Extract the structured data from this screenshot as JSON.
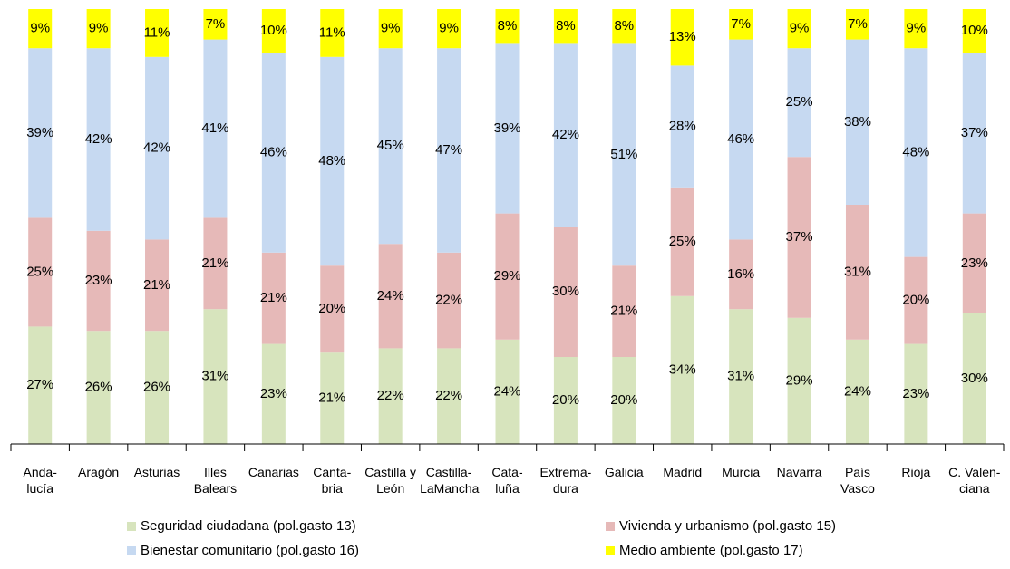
{
  "chart_data": {
    "type": "stacked_bar",
    "categories": [
      "Anda-\nlucía",
      "Aragón",
      "Asturias",
      "Illes\nBalears",
      "Canarias",
      "Canta-\nbria",
      "Castilla y\nLeón",
      "Castilla-\nLaMancha",
      "Cata-\nluña",
      "Extrema-\ndura",
      "Galicia",
      "Madrid",
      "Murcia",
      "Navarra",
      "País\nVasco",
      "Rioja",
      "C. Valen-\nciana"
    ],
    "series": [
      {
        "name": "Seguridad ciudadana (pol.gasto 13)",
        "color": "#d7e4bd",
        "values": [
          27,
          26,
          26,
          31,
          23,
          21,
          22,
          22,
          24,
          20,
          20,
          34,
          31,
          29,
          24,
          23,
          30
        ],
        "value_labels": [
          "27%",
          "26%",
          "26%",
          "31%",
          "23%",
          "21%",
          "22%",
          "22%",
          "24%",
          "20%",
          "20%",
          "34%",
          "31%",
          "29%",
          "24%",
          "23%",
          "30%"
        ]
      },
      {
        "name": "Vivienda y urbanismo (pol.gasto 15)",
        "color": "#e6b9b8",
        "values": [
          25,
          23,
          21,
          21,
          21,
          20,
          24,
          22,
          29,
          30,
          21,
          25,
          16,
          37,
          31,
          20,
          23
        ],
        "value_labels": [
          "25%",
          "23%",
          "21%",
          "21%",
          "21%",
          "20%",
          "24%",
          "22%",
          "29%",
          "30%",
          "21%",
          "25%",
          "16%",
          "37%",
          "31%",
          "20%",
          "23%"
        ]
      },
      {
        "name": "Bienestar comunitario (pol.gasto 16)",
        "color": "#c6d9f1",
        "values": [
          39,
          42,
          42,
          41,
          46,
          48,
          45,
          47,
          39,
          42,
          51,
          28,
          46,
          25,
          38,
          48,
          37
        ],
        "value_labels": [
          "39%",
          "42%",
          "42%",
          "41%",
          "46%",
          "48%",
          "45%",
          "47%",
          "39%",
          "42%",
          "51%",
          "28%",
          "46%",
          "25%",
          "38%",
          "48%",
          "37%"
        ]
      },
      {
        "name": "Medio ambiente (pol.gasto 17)",
        "color": "#ffff00",
        "values": [
          9,
          9,
          11,
          7,
          10,
          11,
          9,
          9,
          8,
          8,
          8,
          13,
          7,
          9,
          7,
          9,
          10
        ],
        "value_labels": [
          "9%",
          "9%",
          "11%",
          "7%",
          "10%",
          "11%",
          "9%",
          "9%",
          "8%",
          "8%",
          "8%",
          "13%",
          "7%",
          "9%",
          "7%",
          "9%",
          "10%"
        ]
      }
    ]
  }
}
